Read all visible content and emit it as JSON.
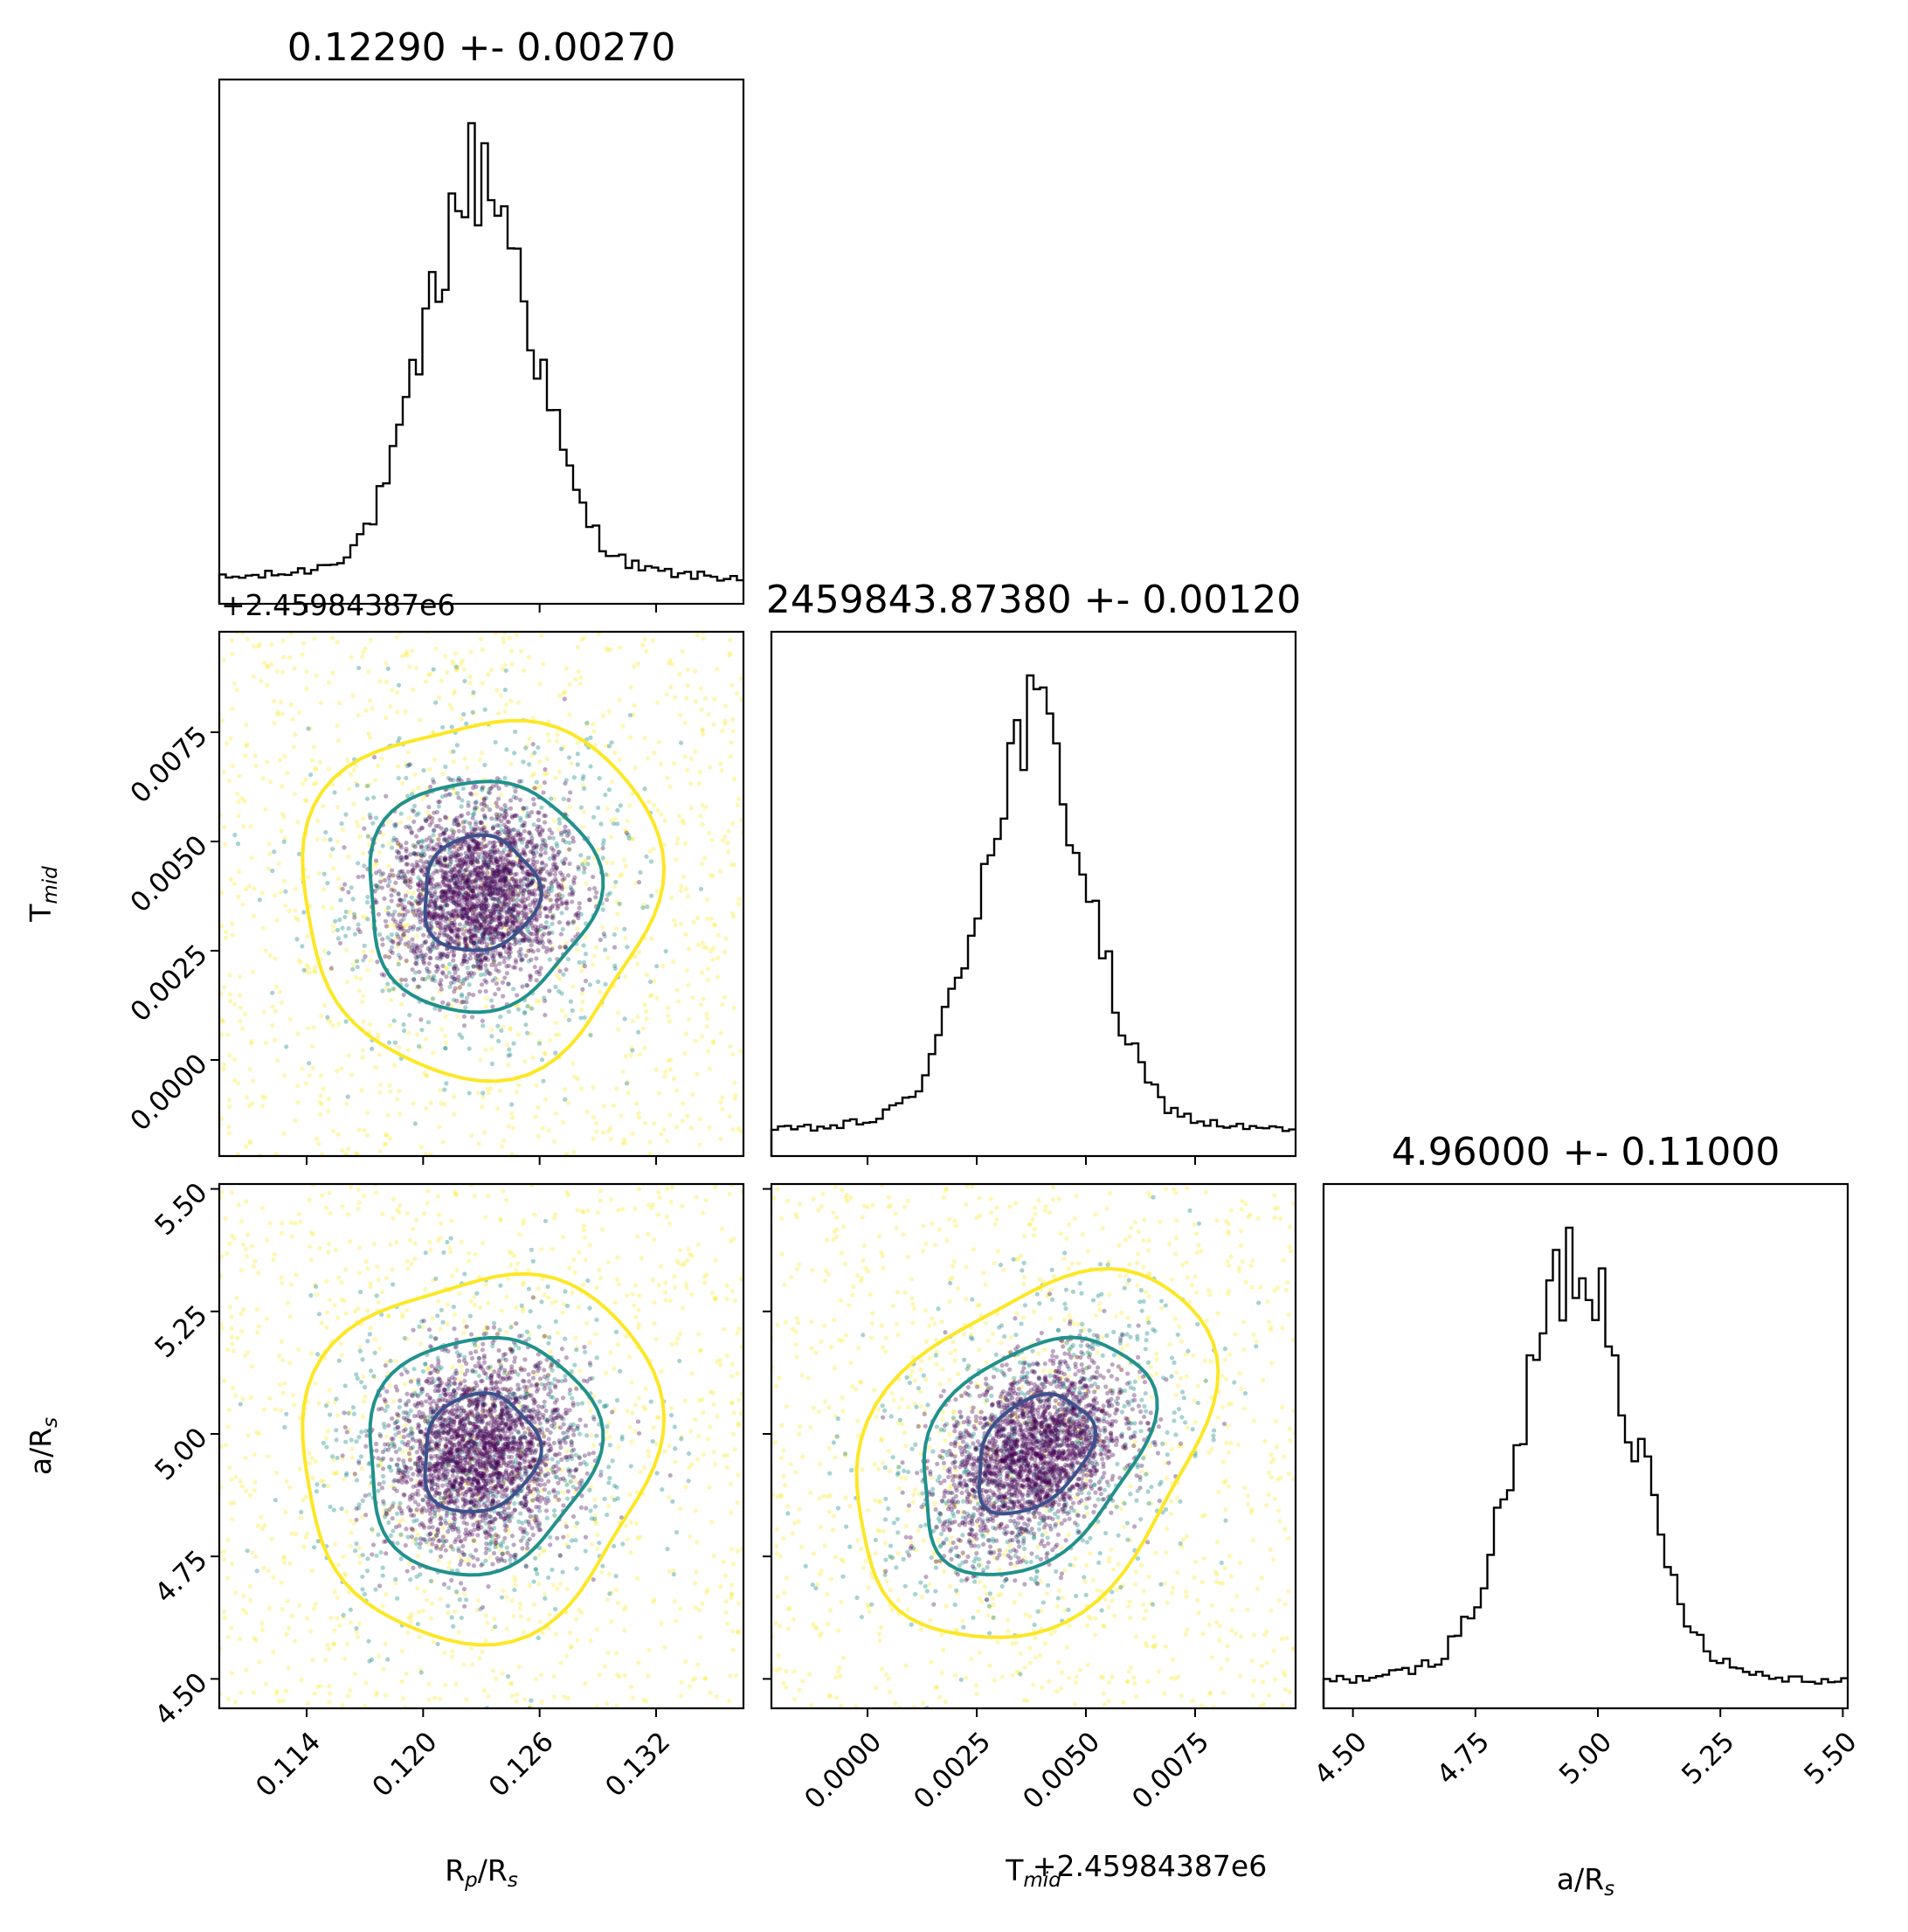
{
  "chart_data": {
    "type": "corner",
    "parameters": [
      {
        "key": "rp",
        "label": "R",
        "label_sub": "p",
        "label_rest": "/R",
        "label_sub2": "s",
        "title": "0.12290 +- 0.00270",
        "mean": 0.1229,
        "sd": 0.0027,
        "range": [
          0.1095,
          0.1365
        ],
        "ticks": [
          0.114,
          0.12,
          0.126,
          0.132
        ],
        "tick_labels": [
          "0.114",
          "0.120",
          "0.126",
          "0.132"
        ]
      },
      {
        "key": "tmid",
        "label": "T",
        "label_sub": "mid",
        "label_rest": "",
        "label_sub2": "",
        "title": "2459843.87380 +- 0.00120",
        "mean": 0.0038,
        "sd": 0.0012,
        "range": [
          -0.0022,
          0.0098
        ],
        "ticks": [
          0.0,
          0.0025,
          0.005,
          0.0075
        ],
        "tick_labels": [
          "0.0000",
          "0.0025",
          "0.0050",
          "0.0075"
        ],
        "offset_text": "+2.45984387e6"
      },
      {
        "key": "ars",
        "label": "a/R",
        "label_sub": "s",
        "label_rest": "",
        "label_sub2": "",
        "title": "4.96000 +- 0.11000",
        "mean": 4.96,
        "sd": 0.11,
        "range": [
          4.44,
          5.51
        ],
        "ticks": [
          4.5,
          4.75,
          5.0,
          5.25,
          5.5
        ],
        "tick_labels": [
          "4.50",
          "4.75",
          "5.00",
          "5.25",
          "5.50"
        ]
      }
    ],
    "contour_levels": [
      {
        "color": "#fde725",
        "level": "outer"
      },
      {
        "color": "#21918c",
        "level": "middle"
      },
      {
        "color": "#3b528b",
        "level": "inner"
      }
    ],
    "scatter_colors": [
      "#440154",
      "#21918c",
      "#fde725"
    ],
    "histogram_color": "#000000",
    "grid": false,
    "legend": "none"
  }
}
